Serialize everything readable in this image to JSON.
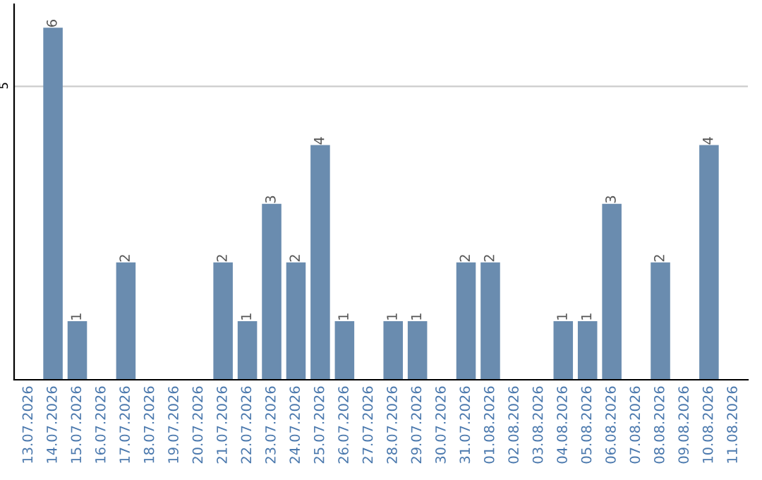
{
  "chart_data": {
    "type": "bar",
    "categories": [
      "13.07.2026",
      "14.07.2026",
      "15.07.2026",
      "16.07.2026",
      "17.07.2026",
      "18.07.2026",
      "19.07.2026",
      "20.07.2026",
      "21.07.2026",
      "22.07.2026",
      "23.07.2026",
      "24.07.2026",
      "25.07.2026",
      "26.07.2026",
      "27.07.2026",
      "28.07.2026",
      "29.07.2026",
      "30.07.2026",
      "31.07.2026",
      "01.08.2026",
      "02.08.2026",
      "03.08.2026",
      "04.08.2026",
      "05.08.2026",
      "06.08.2026",
      "07.08.2026",
      "08.08.2026",
      "09.08.2026",
      "10.08.2026",
      "11.08.2026"
    ],
    "values": [
      0,
      6,
      1,
      0,
      2,
      0,
      0,
      0,
      2,
      1,
      3,
      2,
      4,
      1,
      0,
      1,
      1,
      0,
      2,
      2,
      0,
      0,
      1,
      1,
      3,
      0,
      2,
      0,
      4,
      0
    ],
    "value_labels": [
      null,
      "6",
      "1",
      null,
      "2",
      null,
      null,
      null,
      "2",
      "1",
      "3",
      "2",
      "4",
      "1",
      null,
      "1",
      "1",
      null,
      "2",
      "2",
      null,
      null,
      "1",
      "1",
      "3",
      null,
      "2",
      null,
      "4",
      null
    ],
    "color": "#6a8caf",
    "ylim": [
      0,
      6.4
    ],
    "yticks": [
      5
    ],
    "grid": "y"
  }
}
